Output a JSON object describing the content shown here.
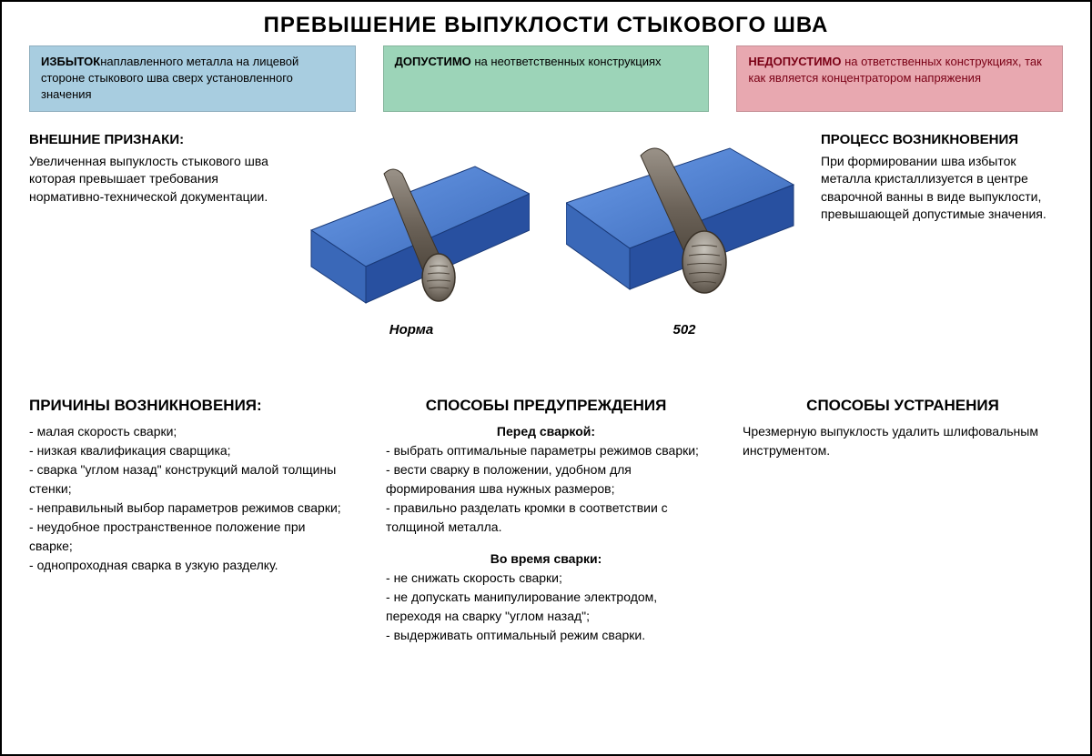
{
  "title": "ПРЕВЫШЕНИЕ ВЫПУКЛОСТИ СТЫКОВОГО ШВА",
  "top_boxes": {
    "blue": {
      "bold": "ИЗБЫТОК",
      "text": "наплавленного металла на лицевой стороне стыкового шва сверх установленного значения",
      "bg": "#a8cde0"
    },
    "green": {
      "bold": "ДОПУСТИМО",
      "text": " на неответственных конструкциях",
      "bg": "#9cd4b8"
    },
    "red": {
      "bold": "НЕДОПУСТИМО",
      "text": " на ответственных конструкциях, так как является концентратором напряжения",
      "bg": "#e8a8b0"
    }
  },
  "mid_left": {
    "heading": "ВНЕШНИЕ ПРИЗНАКИ:",
    "text": "Увеличенная выпуклость стыкового шва которая превышает требования нормативно-технической документации."
  },
  "mid_right": {
    "heading": "ПРОЦЕСС ВОЗНИКНОВЕНИЯ",
    "text": "При формировании шва избыток металла кристаллизуется в центре сварочной ванны в виде выпуклости, превышающей допустимые значения."
  },
  "diagram": {
    "plate_color_top": "#4a7bc8",
    "plate_color_side": "#2850a0",
    "plate_color_front": "#3a68b8",
    "weld_color": "#6b6258",
    "weld_highlight": "#8a8278",
    "left_label": "Норма",
    "right_label": "502",
    "left_weld_height": 18,
    "right_weld_height": 30
  },
  "bottom": {
    "causes": {
      "heading": "ПРИЧИНЫ ВОЗНИКНОВЕНИЯ:",
      "items": [
        "малая скорость сварки;",
        "низкая квалификация сварщика;",
        "сварка \"углом назад\" конструкций малой толщины стенки;",
        "неправильный выбор параметров режимов сварки;",
        "неудобное пространственное положение при сварке;",
        "однопроходная сварка в узкую разделку."
      ]
    },
    "prevention": {
      "heading": "СПОСОБЫ ПРЕДУПРЕЖДЕНИЯ",
      "sub1": "Перед сваркой:",
      "items1": [
        "выбрать оптимальные параметры режимов сварки;",
        "вести сварку в положении, удобном для формирования шва нужных размеров;",
        "правильно разделать кромки в соответствии с толщиной металла."
      ],
      "sub2": "Во время сварки:",
      "items2": [
        "не снижать скорость сварки;",
        "не допускать манипулирование электродом, переходя на сварку \"углом назад\";",
        "выдерживать оптимальный режим сварки."
      ]
    },
    "elimination": {
      "heading": "СПОСОБЫ УСТРАНЕНИЯ",
      "text": "Чрезмерную выпуклость удалить шлифовальным инструментом."
    }
  }
}
